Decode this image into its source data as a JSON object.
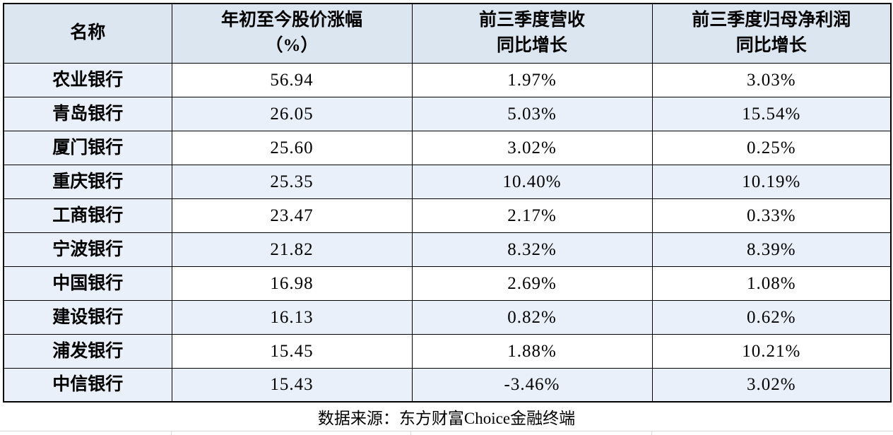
{
  "colors": {
    "header_bg": "#dce6f1",
    "stripe_bg": "#e9f0fa",
    "border": "#000000",
    "faint_gridline": "#d8d8d8",
    "text": "#000000",
    "page_bg": "#ffffff"
  },
  "table": {
    "headers": [
      {
        "line1": "名称",
        "line2": ""
      },
      {
        "line1": "年初至今股价涨幅",
        "line2": "（%）"
      },
      {
        "line1": "前三季度营收",
        "line2": "同比增长"
      },
      {
        "line1": "前三季度归母净利润",
        "line2": "同比增长"
      }
    ],
    "rows": [
      {
        "name": "农业银行",
        "price_change_pct": "56.94",
        "revenue_yoy": "1.97%",
        "profit_yoy": "3.03%"
      },
      {
        "name": "青岛银行",
        "price_change_pct": "26.05",
        "revenue_yoy": "5.03%",
        "profit_yoy": "15.54%"
      },
      {
        "name": "厦门银行",
        "price_change_pct": "25.60",
        "revenue_yoy": "3.02%",
        "profit_yoy": "0.25%"
      },
      {
        "name": "重庆银行",
        "price_change_pct": "25.35",
        "revenue_yoy": "10.40%",
        "profit_yoy": "10.19%"
      },
      {
        "name": "工商银行",
        "price_change_pct": "23.47",
        "revenue_yoy": "2.17%",
        "profit_yoy": "0.33%"
      },
      {
        "name": "宁波银行",
        "price_change_pct": "21.82",
        "revenue_yoy": "8.32%",
        "profit_yoy": "8.39%"
      },
      {
        "name": "中国银行",
        "price_change_pct": "16.98",
        "revenue_yoy": "2.69%",
        "profit_yoy": "1.08%"
      },
      {
        "name": "建设银行",
        "price_change_pct": "16.13",
        "revenue_yoy": "0.82%",
        "profit_yoy": "0.62%"
      },
      {
        "name": "浦发银行",
        "price_change_pct": "15.45",
        "revenue_yoy": "1.88%",
        "profit_yoy": "10.21%"
      },
      {
        "name": "中信银行",
        "price_change_pct": "15.43",
        "revenue_yoy": "-3.46%",
        "profit_yoy": "3.02%"
      }
    ]
  },
  "footer": {
    "text": "数据来源：东方财富Choice金融终端"
  },
  "chart_data": {
    "type": "table",
    "title": "",
    "columns": [
      "名称",
      "年初至今股价涨幅（%）",
      "前三季度营收同比增长",
      "前三季度归母净利润同比增长"
    ],
    "rows": [
      [
        "农业银行",
        56.94,
        "1.97%",
        "3.03%"
      ],
      [
        "青岛银行",
        26.05,
        "5.03%",
        "15.54%"
      ],
      [
        "厦门银行",
        25.6,
        "3.02%",
        "0.25%"
      ],
      [
        "重庆银行",
        25.35,
        "10.40%",
        "10.19%"
      ],
      [
        "工商银行",
        23.47,
        "2.17%",
        "0.33%"
      ],
      [
        "宁波银行",
        21.82,
        "8.32%",
        "8.39%"
      ],
      [
        "中国银行",
        16.98,
        "2.69%",
        "1.08%"
      ],
      [
        "建设银行",
        16.13,
        "0.82%",
        "0.62%"
      ],
      [
        "浦发银行",
        15.45,
        "1.88%",
        "10.21%"
      ],
      [
        "中信银行",
        15.43,
        "-3.46%",
        "3.02%"
      ]
    ],
    "layout_hints": {
      "header_fill": "#dce6f1",
      "banded_rows": true,
      "band_fill": "#e9f0fa",
      "first_column_fill": "#e9f0fa",
      "source_caption": "数据来源：东方财富Choice金融终端"
    }
  }
}
